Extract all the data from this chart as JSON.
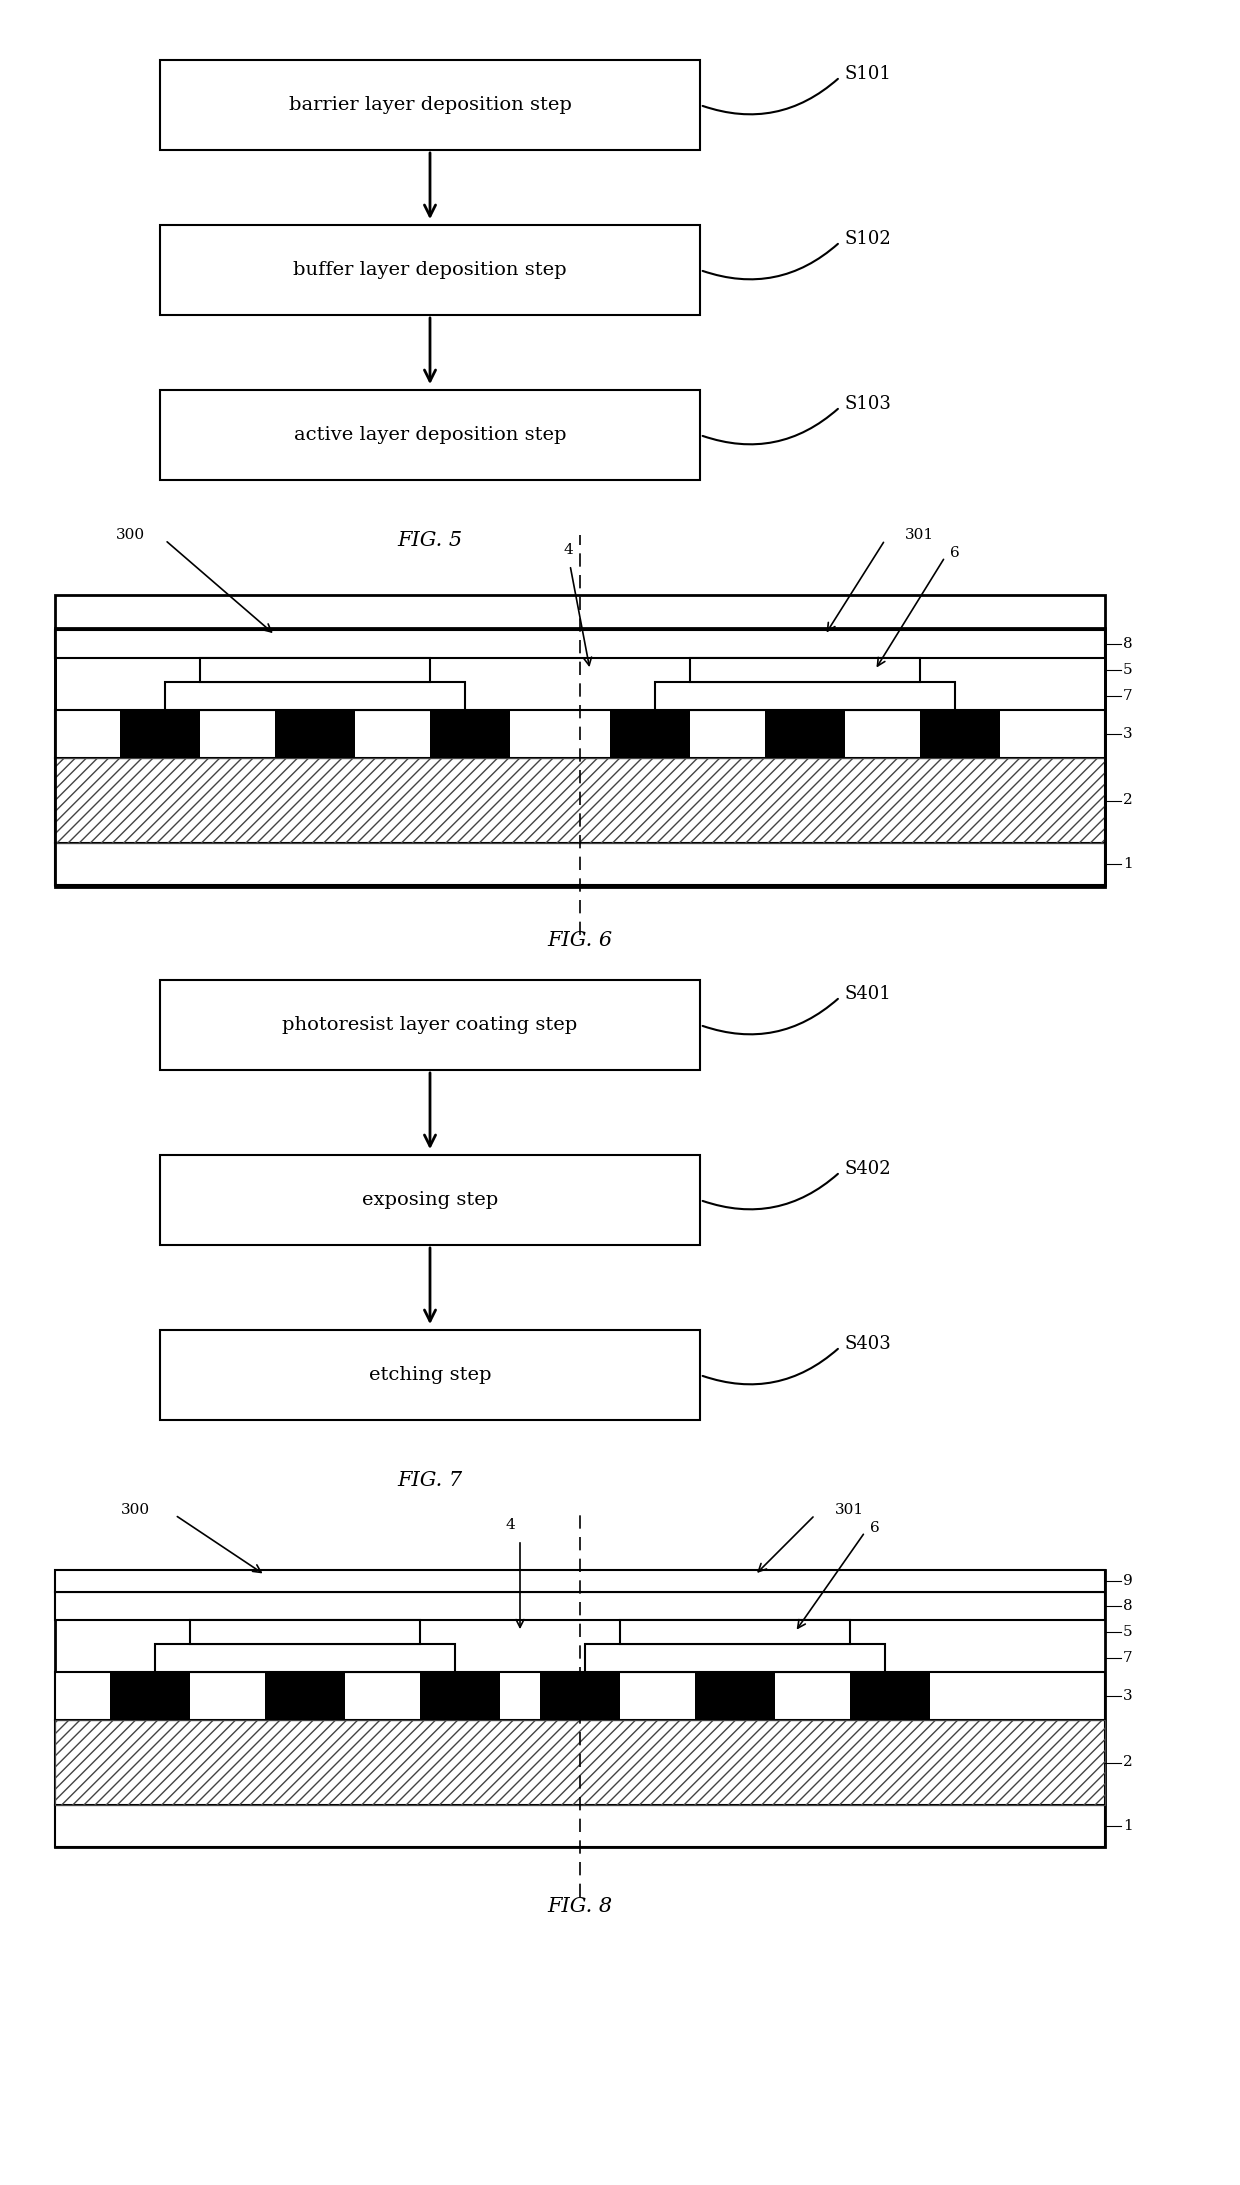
{
  "fig5_boxes": [
    {
      "text": "barrier layer deposition step",
      "label": "S101"
    },
    {
      "text": "buffer layer deposition step",
      "label": "S102"
    },
    {
      "text": "active layer deposition step",
      "label": "S103"
    }
  ],
  "fig5_caption": "FIG. 5",
  "fig7_boxes": [
    {
      "text": "photoresist layer coating step",
      "label": "S401"
    },
    {
      "text": "exposing step",
      "label": "S402"
    },
    {
      "text": "etching step",
      "label": "S403"
    }
  ],
  "fig7_caption": "FIG. 7",
  "fig6_caption": "FIG. 6",
  "fig8_caption": "FIG. 8",
  "bg_color": "#ffffff",
  "line_color": "#000000"
}
